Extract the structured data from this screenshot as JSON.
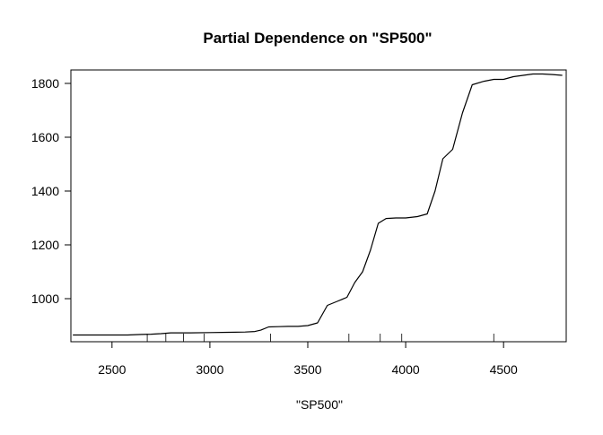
{
  "chart_data": {
    "type": "line",
    "title": "Partial Dependence on \"SP500\"",
    "xlabel": "\"SP500\"",
    "ylabel": "",
    "xlim": [
      2290,
      4820
    ],
    "ylim": [
      840,
      1850
    ],
    "xticks": [
      2500,
      3000,
      3500,
      4000,
      4500
    ],
    "yticks": [
      1000,
      1200,
      1400,
      1600,
      1800
    ],
    "grid": false,
    "legend": "none",
    "line_color": "#000000",
    "series": [
      {
        "x": [
          2300,
          2400,
          2500,
          2580,
          2650,
          2700,
          2750,
          2800,
          2900,
          3000,
          3100,
          3180,
          3230,
          3260,
          3300,
          3350,
          3400,
          3450,
          3500,
          3550,
          3600,
          3650,
          3700,
          3740,
          3780,
          3820,
          3860,
          3900,
          3950,
          4000,
          4060,
          4110,
          4150,
          4190,
          4240,
          4290,
          4340,
          4400,
          4450,
          4500,
          4550,
          4600,
          4650,
          4700,
          4750,
          4800
        ],
        "y": [
          865,
          865,
          865,
          865,
          867,
          868,
          870,
          873,
          873,
          874,
          875,
          876,
          878,
          883,
          895,
          896,
          897,
          897,
          900,
          910,
          975,
          990,
          1005,
          1060,
          1100,
          1180,
          1280,
          1298,
          1300,
          1300,
          1305,
          1315,
          1400,
          1520,
          1555,
          1690,
          1795,
          1808,
          1815,
          1815,
          1825,
          1830,
          1835,
          1835,
          1833,
          1830
        ]
      }
    ],
    "rug_x": [
      2680,
      2775,
      2865,
      2970,
      3310,
      3710,
      3870,
      3980,
      4450
    ]
  }
}
